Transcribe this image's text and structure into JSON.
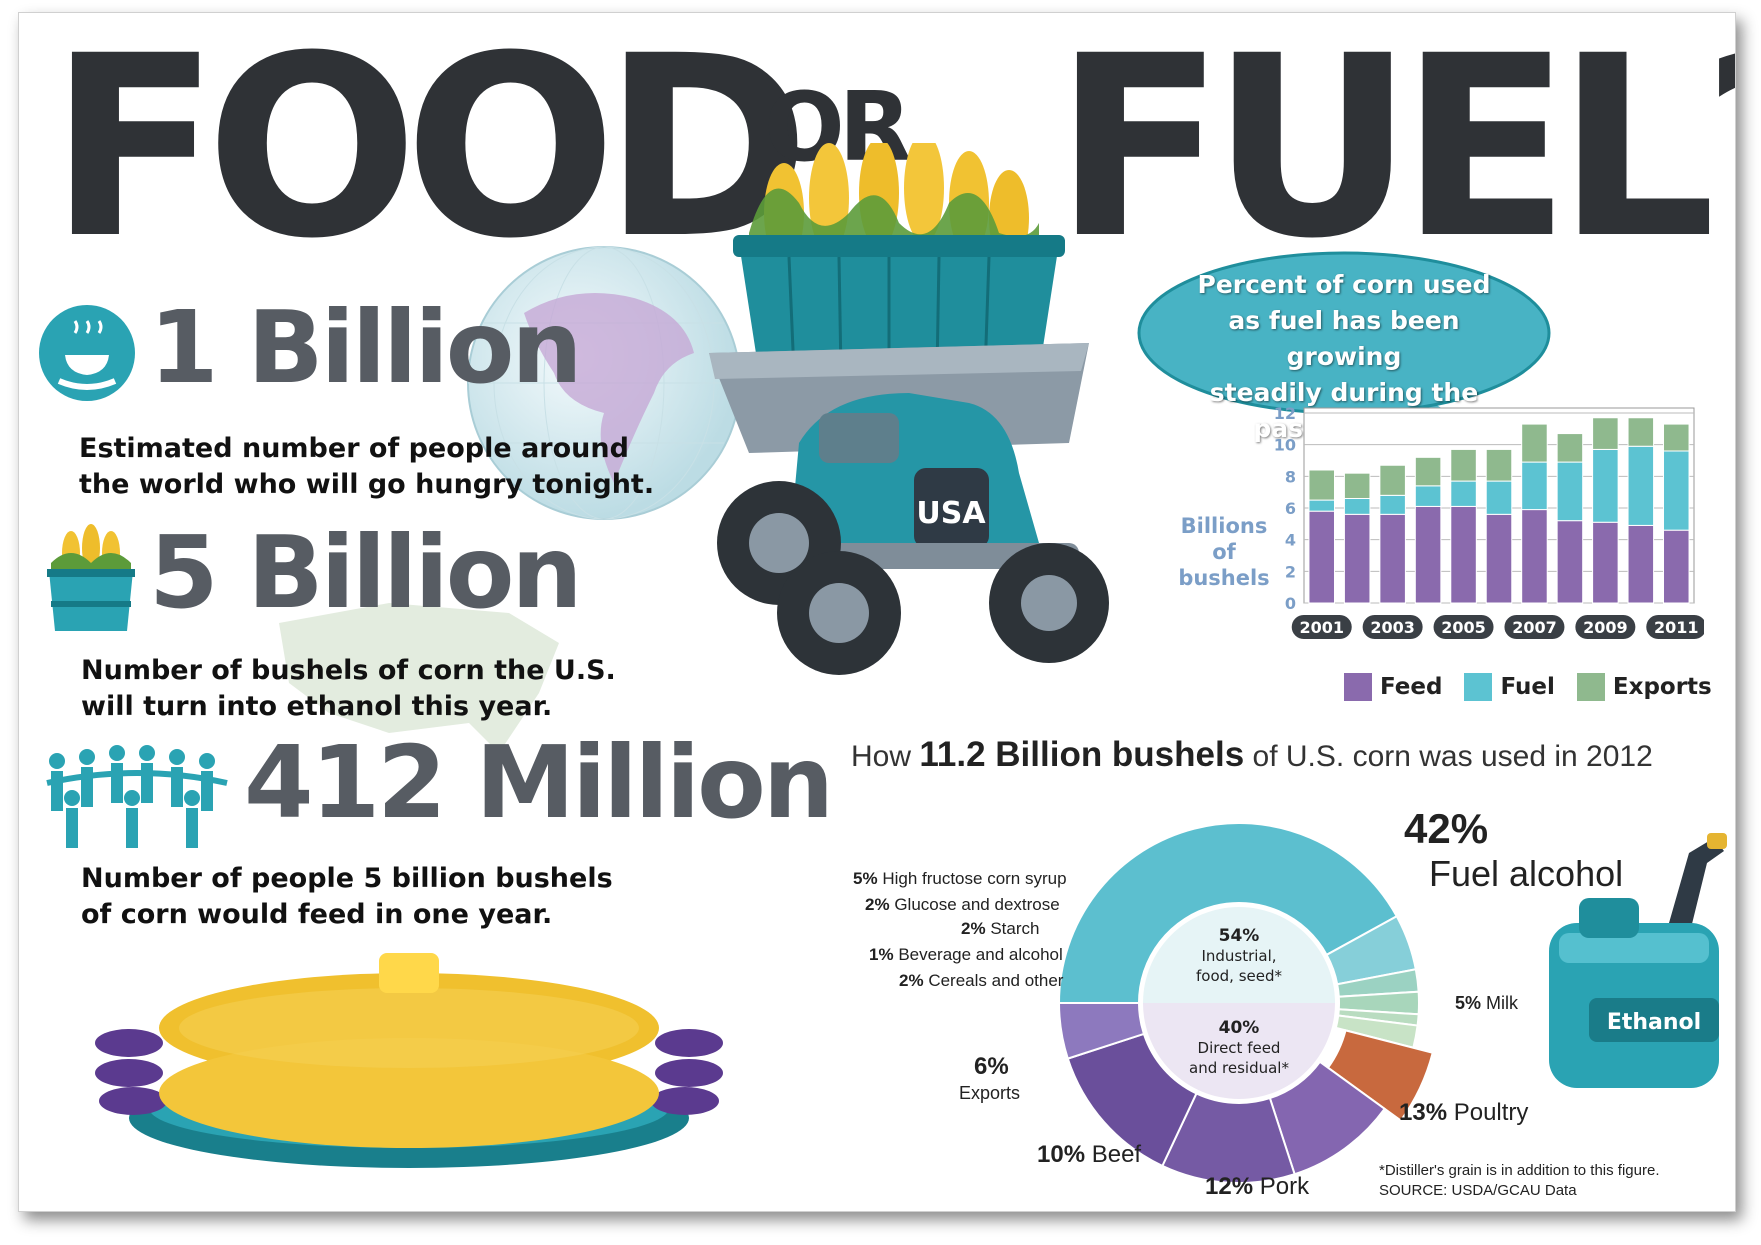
{
  "title": {
    "food": "FOOD",
    "or": "OR",
    "fuel": "FUEL?"
  },
  "stats": [
    {
      "number": "1 Billion",
      "desc_line1": "Estimated number of people around",
      "desc_line2": "the world who will go hungry tonight.",
      "icon": "food-bowl-hands-icon"
    },
    {
      "number": "5 Billion",
      "desc_line1": "Number of bushels of corn the U.S.",
      "desc_line2": "will turn into ethanol this year.",
      "icon": "corn-basket-icon"
    },
    {
      "number": "412 Million",
      "desc_line1": "Number of people 5 billion bushels",
      "desc_line2": "of corn would feed in one year.",
      "icon": "people-chain-icon"
    }
  ],
  "illustrations": {
    "truck_plate": "USA",
    "can_label": "Ethanol"
  },
  "bubble": {
    "line1": "Percent of corn used",
    "line2": "as fuel has been growing",
    "line3": "steadily during the",
    "line4": "past decade."
  },
  "colors": {
    "feed": "#8a6aad",
    "fuel": "#5cc3d2",
    "exports": "#8fb98e",
    "title": "#2f3236",
    "teal": "#2aa3b3"
  },
  "chart_data": [
    {
      "type": "bar",
      "stacked": true,
      "ylabel_line1": "Billions",
      "ylabel_line2": "of",
      "ylabel_line3": "bushels",
      "ylim": [
        0,
        12
      ],
      "yticks": [
        0,
        2,
        4,
        6,
        8,
        10,
        12
      ],
      "x": [
        2001,
        2002,
        2003,
        2004,
        2005,
        2006,
        2007,
        2008,
        2009,
        2010,
        2011
      ],
      "xtick_labels": [
        "2001",
        "2003",
        "2005",
        "2007",
        "2009",
        "2011"
      ],
      "series": [
        {
          "name": "Feed",
          "values": [
            5.8,
            5.6,
            5.6,
            6.1,
            6.1,
            5.6,
            5.9,
            5.2,
            5.1,
            4.9,
            4.6
          ]
        },
        {
          "name": "Fuel",
          "values": [
            0.7,
            1.0,
            1.2,
            1.3,
            1.6,
            2.1,
            3.0,
            3.7,
            4.6,
            5.0,
            5.0
          ]
        },
        {
          "name": "Exports",
          "values": [
            1.9,
            1.6,
            1.9,
            1.8,
            2.0,
            2.0,
            2.4,
            1.8,
            2.0,
            1.8,
            1.7
          ]
        }
      ],
      "legend_position": "bottom",
      "grid": true
    },
    {
      "type": "pie",
      "title_pre": "How",
      "title_bold": "11.2 Billion bushels",
      "title_post": "of U.S. corn was used in 2012",
      "groups": [
        {
          "pct": "54%",
          "line1": "Industrial,",
          "line2": "food, seed*"
        },
        {
          "pct": "40%",
          "line1": "Direct feed",
          "line2": "and residual*"
        }
      ],
      "slices": [
        {
          "label": "Fuel alcohol",
          "pct_text": "42%",
          "value": 42
        },
        {
          "label": "High fructose corn syrup",
          "pct_text": "5%",
          "value": 5
        },
        {
          "label": "Glucose and dextrose",
          "pct_text": "2%",
          "value": 2
        },
        {
          "label": "Starch",
          "pct_text": "2%",
          "value": 2
        },
        {
          "label": "Beverage and alcohol",
          "pct_text": "1%",
          "value": 1
        },
        {
          "label": "Cereals and other",
          "pct_text": "2%",
          "value": 2
        },
        {
          "label": "Exports",
          "pct_text": "6%",
          "value": 6
        },
        {
          "label": "Beef",
          "pct_text": "10%",
          "value": 10
        },
        {
          "label": "Pork",
          "pct_text": "12%",
          "value": 12
        },
        {
          "label": "Poultry",
          "pct_text": "13%",
          "value": 13
        },
        {
          "label": "Milk",
          "pct_text": "5%",
          "value": 5
        }
      ],
      "footnote": "*Distiller's grain is in addition to this figure.",
      "source": "SOURCE: USDA/GCAU Data"
    }
  ]
}
